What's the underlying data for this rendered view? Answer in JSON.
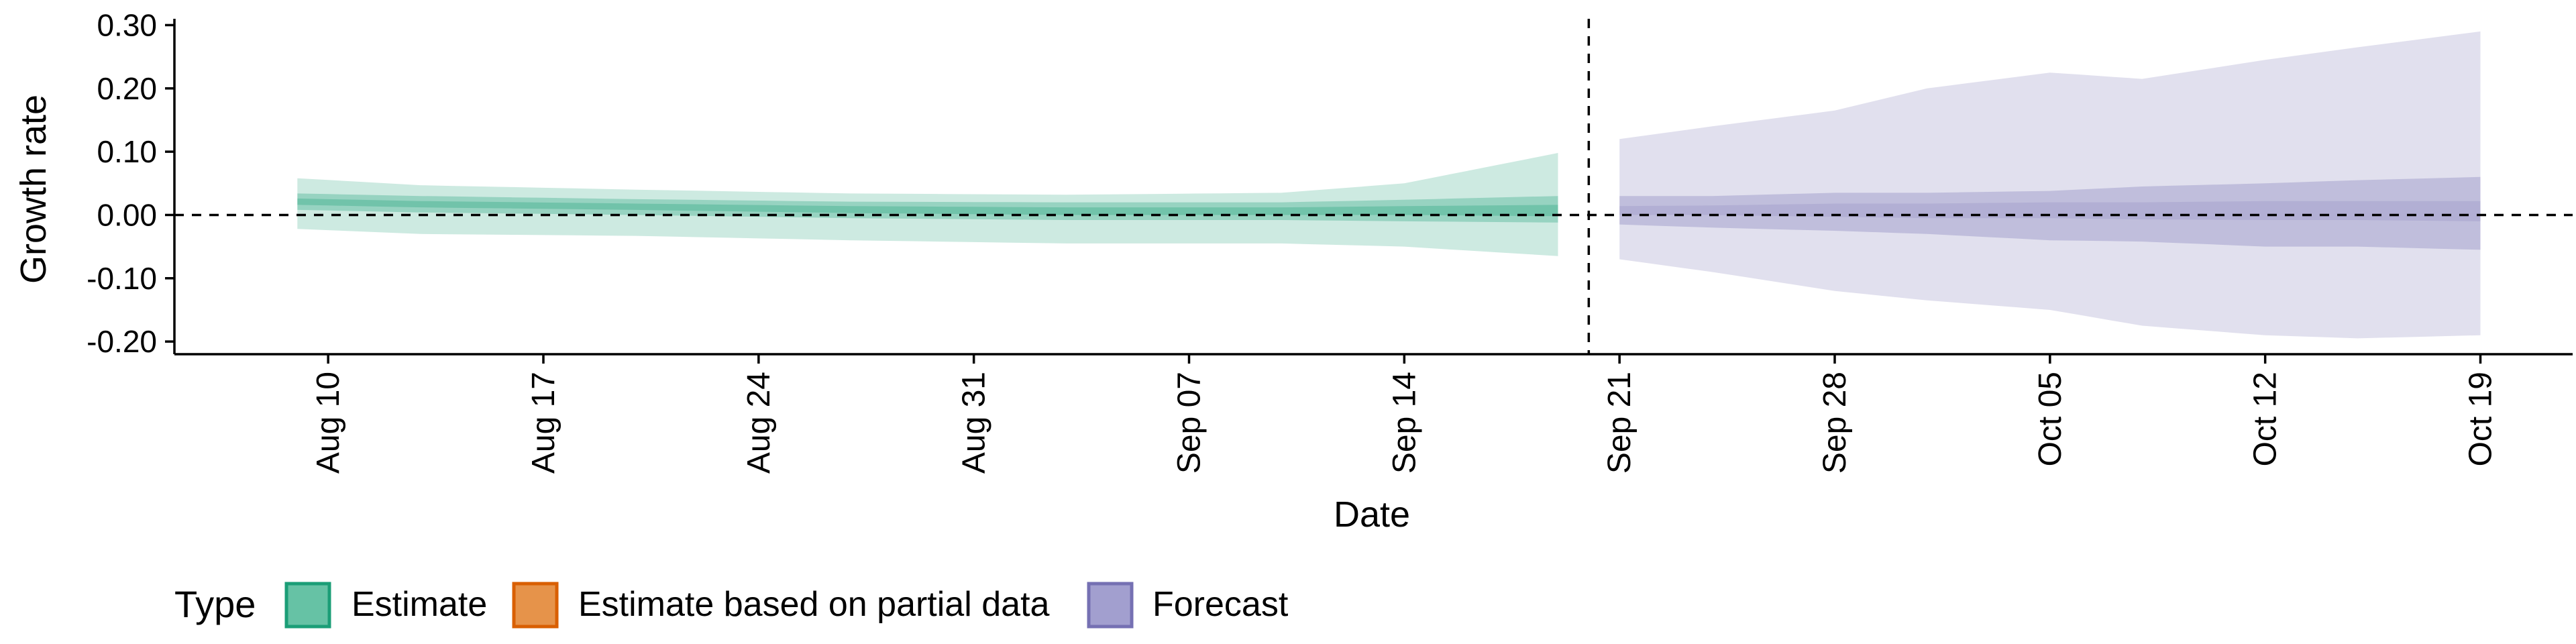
{
  "colors": {
    "estimate": "#1b9e77",
    "estimate_partial": "#d95f02",
    "forecast": "#7570b3",
    "estimate_fill": "#66c2a5",
    "partial_fill": "#e6934a",
    "forecast_fill": "#a29fcf"
  },
  "chart_data": {
    "type": "area",
    "xlabel": "Date",
    "ylabel": "Growth rate",
    "ylim": [
      -0.22,
      0.31
    ],
    "yticks": [
      {
        "v": -0.2,
        "label": "-0.20"
      },
      {
        "v": -0.1,
        "label": "-0.10"
      },
      {
        "v": 0.0,
        "label": "0.00"
      },
      {
        "v": 0.1,
        "label": "0.10"
      },
      {
        "v": 0.2,
        "label": "0.20"
      },
      {
        "v": 0.3,
        "label": "0.30"
      }
    ],
    "xlim": [
      "2020-08-05",
      "2020-10-22"
    ],
    "xticks": [
      {
        "date": "2020-08-10",
        "label": "Aug 10"
      },
      {
        "date": "2020-08-17",
        "label": "Aug 17"
      },
      {
        "date": "2020-08-24",
        "label": "Aug 24"
      },
      {
        "date": "2020-08-31",
        "label": "Aug 31"
      },
      {
        "date": "2020-09-07",
        "label": "Sep 07"
      },
      {
        "date": "2020-09-14",
        "label": "Sep 14"
      },
      {
        "date": "2020-09-21",
        "label": "Sep 21"
      },
      {
        "date": "2020-09-28",
        "label": "Sep 28"
      },
      {
        "date": "2020-10-05",
        "label": "Oct 05"
      },
      {
        "date": "2020-10-12",
        "label": "Oct 12"
      },
      {
        "date": "2020-10-19",
        "label": "Oct 19"
      }
    ],
    "hline": 0,
    "vline": "2020-09-20",
    "legend": {
      "position": "bottom",
      "title": "Type",
      "items": [
        {
          "label": "Estimate",
          "key": "estimate"
        },
        {
          "label": "Estimate based on partial data",
          "key": "estimate_partial"
        },
        {
          "label": "Forecast",
          "key": "forecast"
        }
      ]
    },
    "series": [
      {
        "key": "estimate",
        "start": "2020-08-09",
        "end": "2020-09-19",
        "knots": [
          {
            "date": "2020-08-09",
            "lo90": -0.022,
            "lo50": 0.008,
            "lo20": 0.016,
            "hi20": 0.026,
            "hi50": 0.034,
            "hi90": 0.058
          },
          {
            "date": "2020-08-13",
            "lo90": -0.03,
            "lo50": 0.004,
            "lo20": 0.012,
            "hi20": 0.022,
            "hi50": 0.03,
            "hi90": 0.047
          },
          {
            "date": "2020-08-20",
            "lo90": -0.033,
            "lo50": 0.0,
            "lo20": 0.008,
            "hi20": 0.018,
            "hi50": 0.025,
            "hi90": 0.04
          },
          {
            "date": "2020-08-27",
            "lo90": -0.04,
            "lo50": -0.005,
            "lo20": 0.003,
            "hi20": 0.014,
            "hi50": 0.021,
            "hi90": 0.034
          },
          {
            "date": "2020-09-03",
            "lo90": -0.045,
            "lo50": -0.008,
            "lo20": 0.0,
            "hi20": 0.012,
            "hi50": 0.02,
            "hi90": 0.032
          },
          {
            "date": "2020-09-10",
            "lo90": -0.045,
            "lo50": -0.008,
            "lo20": 0.0,
            "hi20": 0.012,
            "hi50": 0.02,
            "hi90": 0.035
          },
          {
            "date": "2020-09-14",
            "lo90": -0.05,
            "lo50": -0.01,
            "lo20": 0.0,
            "hi20": 0.014,
            "hi50": 0.024,
            "hi90": 0.05
          },
          {
            "date": "2020-09-19",
            "lo90": -0.065,
            "lo50": -0.012,
            "lo20": -0.002,
            "hi20": 0.016,
            "hi50": 0.03,
            "hi90": 0.098
          }
        ]
      },
      {
        "key": "forecast",
        "start": "2020-09-21",
        "end": "2020-10-19",
        "knots": [
          {
            "date": "2020-09-21",
            "lo90": -0.07,
            "lo50": -0.015,
            "lo20": 0.0,
            "hi20": 0.014,
            "hi50": 0.03,
            "hi90": 0.12
          },
          {
            "date": "2020-09-24",
            "lo90": -0.09,
            "lo50": -0.02,
            "lo20": 0.0,
            "hi20": 0.015,
            "hi50": 0.03,
            "hi90": 0.14
          },
          {
            "date": "2020-09-28",
            "lo90": -0.12,
            "lo50": -0.025,
            "lo20": -0.003,
            "hi20": 0.018,
            "hi50": 0.035,
            "hi90": 0.165
          },
          {
            "date": "2020-10-01",
            "lo90": -0.135,
            "lo50": -0.03,
            "lo20": -0.005,
            "hi20": 0.018,
            "hi50": 0.035,
            "hi90": 0.2
          },
          {
            "date": "2020-10-05",
            "lo90": -0.15,
            "lo50": -0.04,
            "lo20": -0.005,
            "hi20": 0.02,
            "hi50": 0.038,
            "hi90": 0.225
          },
          {
            "date": "2020-10-08",
            "lo90": -0.175,
            "lo50": -0.042,
            "lo20": -0.007,
            "hi20": 0.02,
            "hi50": 0.045,
            "hi90": 0.215
          },
          {
            "date": "2020-10-12",
            "lo90": -0.19,
            "lo50": -0.05,
            "lo20": -0.008,
            "hi20": 0.022,
            "hi50": 0.05,
            "hi90": 0.245
          },
          {
            "date": "2020-10-15",
            "lo90": -0.195,
            "lo50": -0.05,
            "lo20": -0.008,
            "hi20": 0.022,
            "hi50": 0.055,
            "hi90": 0.265
          },
          {
            "date": "2020-10-19",
            "lo90": -0.19,
            "lo50": -0.055,
            "lo20": -0.01,
            "hi20": 0.022,
            "hi50": 0.06,
            "hi90": 0.29
          }
        ]
      }
    ]
  }
}
